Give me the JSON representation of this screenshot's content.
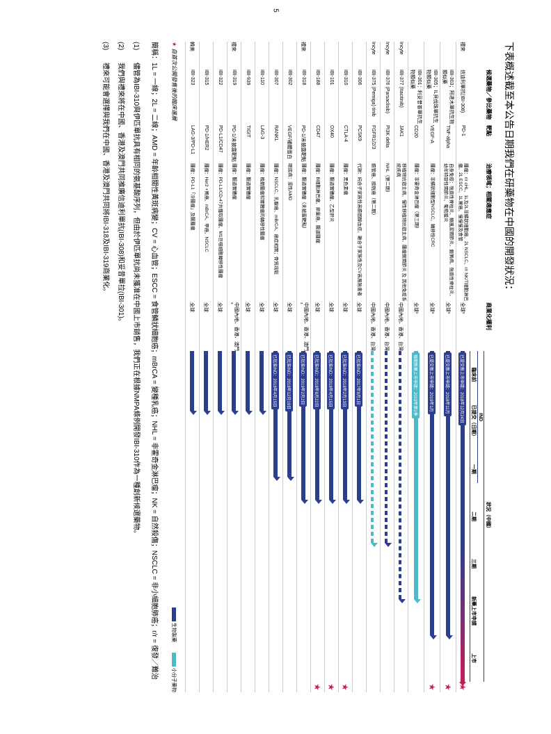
{
  "heading": "下表概述截至本公告日期我們在研藥物在中國的開發狀況：",
  "pageNum": "5",
  "columns": {
    "partner": "",
    "drug": "候選藥物／參比藥物",
    "target": "靶點",
    "indication": "治療領域；相關適應症",
    "rights": "商業化權利",
    "phaseTop": "狀況（中國）",
    "ind": "IND",
    "preClinical": "臨床前",
    "submitted": "已提交（日期）",
    "p1": "一期",
    "p2": "二期",
    "p3": "三期",
    "nda": "新藥上市申請",
    "market": "上市"
  },
  "rows": [
    {
      "partner": "禮來",
      "drug": "信迪利單抗(IBI-308)",
      "target": "PD-1",
      "indication": "腫瘤：r/r cHL、1L及2L非鱗狀細胞癌、2L NSCLC、r/r NK/T細胞淋巴瘤、2L ESCC、1L胃癌、慢慢慢及食管",
      "rights": "全球²",
      "badge": "已提交新上市申請：2018年12月24日",
      "arrows": [
        {
          "type": "gradient",
          "start": 0,
          "end": 100
        }
      ],
      "star": true
    },
    {
      "partner": "",
      "drug": "IBI-303；阿達木單抗生物類似藥",
      "target": "TNF-alpha",
      "indication": "自身免疫：強直性脊柱炎、類風濕關節炎、銀屑病、強直性脊柱炎、幼年特發性關節炎、葡萄膜炎",
      "rights": "全球²",
      "badge": "已提交新上市申請：2018年11月",
      "arrows": [
        {
          "type": "solid",
          "color": "#2e3e8e",
          "start": 0,
          "end": 86
        }
      ],
      "star": true
    },
    {
      "partner": "",
      "drug": "IBI-305；IL貝伐珠單抗生物類似藥",
      "target": "VEGF-A",
      "indication": "腫瘤：非鱗狀細胞型NSCLC、轉移性CRC",
      "rights": "全球²",
      "badge": "已提交新上市申請：2019年1月",
      "arrows": [
        {
          "type": "solid",
          "color": "#2e3e8e",
          "start": 0,
          "end": 86
        }
      ],
      "star": true
    },
    {
      "partner": "",
      "drug": "IBI-301：利妥昔普單抗生物類似藥",
      "target": "CD20",
      "indication": "腫瘤：非霍奇金淋巴瘤（第三期）",
      "rights": "全球²",
      "badge": "預期新藥上市申請：2019年第1季",
      "badgeCyan": true,
      "arrows": [
        {
          "type": "solid",
          "color": "#4fb8c9",
          "start": 0,
          "end": 75
        }
      ],
      "star": false
    },
    {
      "partner": "Incyte",
      "drug": "IBI-377 (Itacitinib)",
      "target": "JAK1",
      "indication": "移植物抗宿主病、慢性移植物抗宿主病、腫瘤銅關節炎 及 其他免疫系統疾病",
      "rights": "中國內地、香港、台灣",
      "badge": "",
      "arrows": [
        {
          "type": "dashed",
          "color": "#2e3e8e",
          "start": 0,
          "end": 75
        }
      ],
      "star": false
    },
    {
      "partner": "Incyte",
      "drug": "IBI-376 (Parsaclisib)",
      "target": "PI3K delta",
      "indication": "NHL（第二期）",
      "rights": "中國內地、香港、台灣",
      "badge": "",
      "arrows": [
        {
          "type": "dashed",
          "color": "#2e3e8e",
          "start": 0,
          "end": 58
        }
      ],
      "star": false
    },
    {
      "partner": "Incyte",
      "drug": "IBI-375 (Pemiga) tinib",
      "target": "FGFR1/2/3",
      "indication": "膽管癌、膀胱癌（第二期）",
      "rights": "中國內地、香港、台灣",
      "badge": "",
      "arrows": [
        {
          "type": "dashed",
          "color": "#4fb8c9",
          "start": 0,
          "end": 58
        }
      ],
      "star": false
    },
    {
      "partner": "",
      "drug": "IBI-306",
      "target": "PCSK9",
      "indication": "代謝：純合子家族性高膽固醇血症、雜合子家族性及CV高風險患者",
      "rights": "全球",
      "badge": "已批准IND：2017年9月1日",
      "arrows": [
        {
          "type": "solid",
          "color": "#2e3e8e",
          "start": 0,
          "end": 45
        }
      ],
      "star": false
    },
    {
      "partner": "",
      "drug": "IBI-310",
      "target": "CTLA-4",
      "indication": "腫瘤：黑色素瘤",
      "rights": "全球",
      "badge": "已批准IND：2018年2月13日",
      "arrows": [
        {
          "type": "solid",
          "color": "#2e3e8e",
          "start": 0,
          "end": 45
        }
      ],
      "star": true
    },
    {
      "partner": "",
      "drug": "IBI-101",
      "target": "OX40",
      "indication": "腫瘤：腸道實體瘤、乙型肝炎",
      "rights": "全球",
      "badge": "已批准IND：2018年4月15日",
      "arrows": [
        {
          "type": "solid",
          "color": "#2e3e8e",
          "start": 0,
          "end": 45
        }
      ],
      "star": true
    },
    {
      "partner": "",
      "drug": "IBI-188",
      "target": "CD47",
      "indication": "腫瘤：B細胞淋巴瘤、卵巢癌、腸道腫瘤",
      "rights": "全球",
      "badge": "已批准IND：2018年8月22日",
      "arrows": [
        {
          "type": "solid",
          "color": "#2e3e8e",
          "start": 0,
          "end": 45
        }
      ],
      "star": true
    },
    {
      "partner": "禮來",
      "drug": "IBI-318",
      "target": "PD-1/未披露靶點",
      "indication": "腫瘤：腸道實體瘤（未披露靶點）",
      "rights": "中國內地、香港、澳門³",
      "badge": "已批准IND：2019年2月2日",
      "arrows": [
        {
          "type": "solid",
          "color": "#2e3e8e",
          "start": 0,
          "end": 45
        }
      ],
      "star": false
    },
    {
      "partner": "",
      "drug": "IBI-302",
      "target": "VEGF/補體蛋白",
      "indication": "眼底病：濕性AMD",
      "rights": "全球",
      "badge": "已批准IND：2018年12月19日",
      "arrows": [
        {
          "type": "solid",
          "color": "#2e3e8e",
          "start": 0,
          "end": 38
        }
      ],
      "star": false
    },
    {
      "partner": "",
      "drug": "IBI-307",
      "target": "RANKL",
      "indication": "腫瘤：NSCLC、乳腺癌、mBrCA、癌症相關；骨質疏鬆",
      "rights": "全球",
      "badge": "已批准IND：2018年4月15日",
      "arrows": [
        {
          "type": "solid",
          "color": "#2e3e8e",
          "start": 0,
          "end": 38
        }
      ],
      "star": false
    },
    {
      "partner": "",
      "drug": "IBI-110",
      "target": "LAG-3",
      "indication": "腫瘤：晚期腫瘤和實體瘤的轉移性腫瘤",
      "rights": "全球",
      "badge": "",
      "arrows": [
        {
          "type": "solid",
          "color": "#2e3e8e",
          "start": 0,
          "end": 18
        }
      ],
      "star": false
    },
    {
      "partner": "",
      "drug": "IBI-939",
      "target": "TIGIT",
      "indication": "腫瘤：腸道實體瘤",
      "rights": "全球",
      "badge": "",
      "arrows": [
        {
          "type": "solid",
          "color": "#2e3e8e",
          "start": 0,
          "end": 18
        }
      ],
      "star": false
    },
    {
      "partner": "禮來",
      "drug": "IBI-319",
      "target": "PD-1/未披露靶點",
      "indication": "腫瘤：腸道實體瘤",
      "rights": "中國內地、香港、澳門³",
      "badge": "",
      "arrows": [
        {
          "type": "solid",
          "color": "#2e3e8e",
          "start": 0,
          "end": 18
        }
      ],
      "star": false
    },
    {
      "partner": "",
      "drug": "IBI-322",
      "target": "PD-L1/CD47",
      "indication": "腫瘤：PD-L1/CD-47共獲取腫瘤、M1巨噬細胞轉移性腫瘤",
      "rights": "全球",
      "badge": "",
      "arrows": [
        {
          "type": "solid",
          "color": "#2e3e8e",
          "start": 0,
          "end": 18
        }
      ],
      "star": false
    },
    {
      "partner": "",
      "drug": "IBI-315",
      "target": "PD-1/HER2",
      "indication": "腫瘤：Her2 +胃癌、mBrCA、甲癌、NSCLC",
      "rights": "全球",
      "badge": "",
      "arrows": [
        {
          "type": "solid",
          "color": "#2e3e8e",
          "start": 0,
          "end": 18
        }
      ],
      "star": false
    },
    {
      "partner": "韓美",
      "drug": "IBI-323",
      "target": "LAG-3/PD-L1",
      "indication": "腫瘤：PD-L1「冷腫瘤」及腸腫瘤",
      "rights": "全球",
      "badge": "",
      "arrows": [
        {
          "type": "solid",
          "color": "#2e3e8e",
          "start": 0,
          "end": 18
        }
      ],
      "star": false
    }
  ],
  "footnoteStar": "自首次公開發售後的臨床進展",
  "legend": {
    "bio": "生物製藥",
    "small": "小分子藥物",
    "bioColor": "#2e3e8e",
    "smallColor": "#4fb8c9"
  },
  "abbrev": "簡稱：1L = 一線；2L = 二線；AMD = 年齡相關性黃斑病變；CV = 心血管；ESCC = 食管鱗狀細胞癌；mBrCA = 變種乳癌；NHL = 非霍奇金淋巴瘤；NK = 自然殺傷；NSCLC = 非小細胞肺癌；r/r = 復發／難治",
  "notes": [
    {
      "n": "(1)",
      "t": "儘管為IBI-310與伊匹單抗具有相同的氨基酸序列，但由於伊匹單抗尚未獲准在中國上市銷售，我們正在根據NMPA條例開發IBI-310作為一種創新候選藥物。"
    },
    {
      "n": "(2)",
      "t": "我們與禮來將在中國、香港及澳門共同推廣信迪利單抗(IBI-308)和妥昔單拉(IBI-301)。"
    },
    {
      "n": "(3)",
      "t": "禮來可能會選擇與我們在中國、香港及澳門共同將IBI-318及IBI-319商業化。"
    }
  ],
  "colors": {
    "navy": "#2e3e8e",
    "cyan": "#4fb8c9",
    "red": "#c41e5a"
  }
}
